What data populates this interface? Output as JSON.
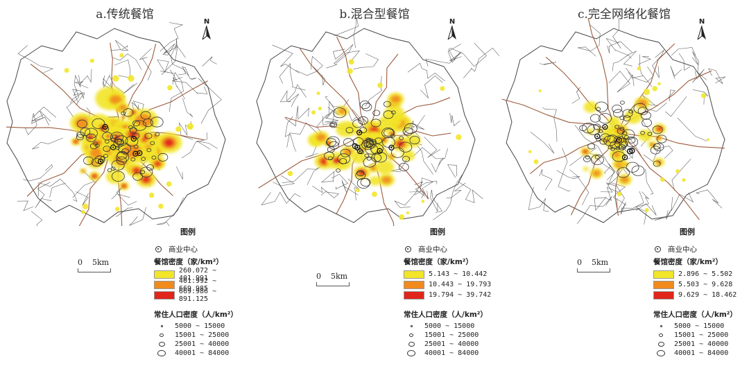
{
  "panels": [
    {
      "title": "a.传统餐馆",
      "density_ranges": [
        "260.072 ~ 401.991",
        "401.992 ~ 669.985",
        "669.986 ~ 891.125"
      ],
      "hotspot_intensity": "high"
    },
    {
      "title": "b.混合型餐馆",
      "density_ranges": [
        "5.143 ~ 10.442",
        "10.443 ~ 19.793",
        "19.794 ~ 39.742"
      ],
      "hotspot_intensity": "medium"
    },
    {
      "title": "c.完全网络化餐馆",
      "density_ranges": [
        "2.896 ~ 5.502",
        "5.503 ~ 9.628",
        "9.629 ~ 18.462"
      ],
      "hotspot_intensity": "low"
    }
  ],
  "legend": {
    "title": "图例",
    "business_center_label": "商业中心",
    "density_title": "餐馆密度（家/km²）",
    "density_colors": [
      "#f2e52a",
      "#f08a1c",
      "#e0251b"
    ],
    "population_title": "常住人口密度（人/km²）",
    "population_ranges": [
      "5000 ~ 15000",
      "15001 ~ 25000",
      "25001 ~ 40000",
      "40001 ~ 84000"
    ]
  },
  "scale_bar": {
    "zero": "0",
    "distance": "5km"
  },
  "north_arrow": {
    "letter": "N"
  },
  "colors": {
    "district_boundary": "#444444",
    "rail_line": "#9c5a3c"
  }
}
